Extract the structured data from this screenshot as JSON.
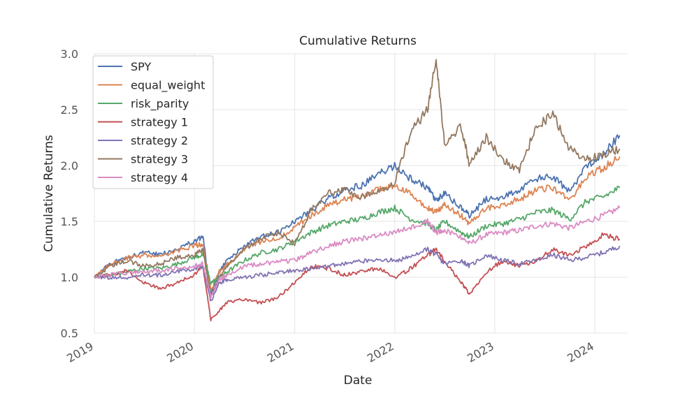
{
  "chart_data": {
    "type": "line",
    "title": "Cumulative Returns",
    "xlabel": "Date",
    "ylabel": "Cumulative Returns",
    "ylim": [
      0.5,
      3.0
    ],
    "xlim": [
      "2019-01-01",
      "2024-04-30"
    ],
    "yticks": [
      "0.5",
      "1.0",
      "1.5",
      "2.0",
      "2.5",
      "3.0"
    ],
    "xticks": [
      "2019",
      "2020",
      "2021",
      "2022",
      "2023",
      "2024"
    ],
    "grid": true,
    "legend": "upper left",
    "x": [
      "2019-01",
      "2019-03",
      "2019-05",
      "2019-07",
      "2019-09",
      "2019-11",
      "2020-01",
      "2020-02",
      "2020-03",
      "2020-04",
      "2020-05",
      "2020-07",
      "2020-09",
      "2020-11",
      "2021-01",
      "2021-03",
      "2021-05",
      "2021-07",
      "2021-09",
      "2021-11",
      "2022-01",
      "2022-03",
      "2022-05",
      "2022-06",
      "2022-07",
      "2022-09",
      "2022-10",
      "2022-12",
      "2023-02",
      "2023-04",
      "2023-06",
      "2023-08",
      "2023-10",
      "2023-12",
      "2024-02",
      "2024-04"
    ],
    "series": [
      {
        "name": "SPY",
        "color": "#4c72b0",
        "values": [
          1.0,
          1.12,
          1.18,
          1.22,
          1.2,
          1.26,
          1.32,
          1.36,
          0.85,
          1.05,
          1.15,
          1.28,
          1.36,
          1.4,
          1.5,
          1.6,
          1.7,
          1.78,
          1.82,
          1.92,
          2.0,
          1.88,
          1.8,
          1.68,
          1.75,
          1.62,
          1.55,
          1.7,
          1.72,
          1.78,
          1.88,
          1.9,
          1.76,
          2.0,
          2.1,
          2.27
        ]
      },
      {
        "name": "equal_weight",
        "color": "#dd8452",
        "values": [
          1.0,
          1.12,
          1.17,
          1.2,
          1.18,
          1.24,
          1.28,
          1.3,
          0.88,
          1.05,
          1.12,
          1.25,
          1.32,
          1.35,
          1.45,
          1.55,
          1.64,
          1.7,
          1.72,
          1.78,
          1.82,
          1.74,
          1.62,
          1.58,
          1.65,
          1.55,
          1.48,
          1.62,
          1.65,
          1.7,
          1.78,
          1.8,
          1.68,
          1.9,
          1.98,
          2.08
        ]
      },
      {
        "name": "risk_parity",
        "color": "#55a868",
        "values": [
          1.0,
          1.02,
          1.05,
          1.08,
          1.08,
          1.12,
          1.18,
          1.2,
          0.95,
          1.0,
          1.05,
          1.15,
          1.22,
          1.25,
          1.32,
          1.4,
          1.46,
          1.5,
          1.52,
          1.58,
          1.62,
          1.52,
          1.48,
          1.42,
          1.5,
          1.4,
          1.36,
          1.46,
          1.48,
          1.52,
          1.58,
          1.6,
          1.52,
          1.68,
          1.72,
          1.8
        ]
      },
      {
        "name": "strategy 1",
        "color": "#c44e52",
        "values": [
          1.0,
          1.02,
          1.06,
          0.95,
          0.9,
          0.95,
          1.02,
          1.1,
          0.62,
          0.7,
          0.78,
          0.8,
          0.77,
          0.82,
          0.95,
          1.1,
          1.08,
          1.02,
          1.05,
          1.08,
          1.0,
          1.08,
          1.2,
          1.25,
          1.15,
          0.95,
          0.85,
          1.05,
          1.15,
          1.1,
          1.15,
          1.25,
          1.2,
          1.28,
          1.38,
          1.34
        ]
      },
      {
        "name": "strategy 2",
        "color": "#8172b3",
        "values": [
          1.0,
          1.0,
          1.0,
          1.02,
          1.02,
          1.05,
          1.08,
          1.1,
          0.78,
          0.95,
          0.98,
          1.0,
          1.02,
          1.04,
          1.06,
          1.08,
          1.1,
          1.12,
          1.14,
          1.16,
          1.15,
          1.18,
          1.25,
          1.2,
          1.12,
          1.15,
          1.1,
          1.2,
          1.15,
          1.12,
          1.15,
          1.2,
          1.15,
          1.18,
          1.22,
          1.28
        ]
      },
      {
        "name": "strategy 3",
        "color": "#937860",
        "values": [
          1.0,
          1.1,
          1.15,
          1.1,
          1.12,
          1.18,
          1.2,
          1.25,
          0.82,
          1.0,
          1.1,
          1.25,
          1.35,
          1.4,
          1.3,
          1.6,
          1.75,
          1.78,
          1.72,
          1.76,
          1.85,
          2.3,
          2.5,
          2.95,
          2.2,
          2.35,
          2.0,
          2.25,
          2.05,
          1.95,
          2.35,
          2.45,
          2.15,
          2.05,
          2.1,
          2.15
        ]
      },
      {
        "name": "strategy 4",
        "color": "#da8bc3",
        "values": [
          1.0,
          1.02,
          1.04,
          1.05,
          1.06,
          1.08,
          1.1,
          1.12,
          0.82,
          0.98,
          1.02,
          1.1,
          1.12,
          1.14,
          1.15,
          1.22,
          1.28,
          1.32,
          1.34,
          1.38,
          1.4,
          1.45,
          1.5,
          1.4,
          1.42,
          1.36,
          1.3,
          1.38,
          1.4,
          1.42,
          1.46,
          1.48,
          1.44,
          1.5,
          1.55,
          1.62
        ]
      }
    ]
  }
}
